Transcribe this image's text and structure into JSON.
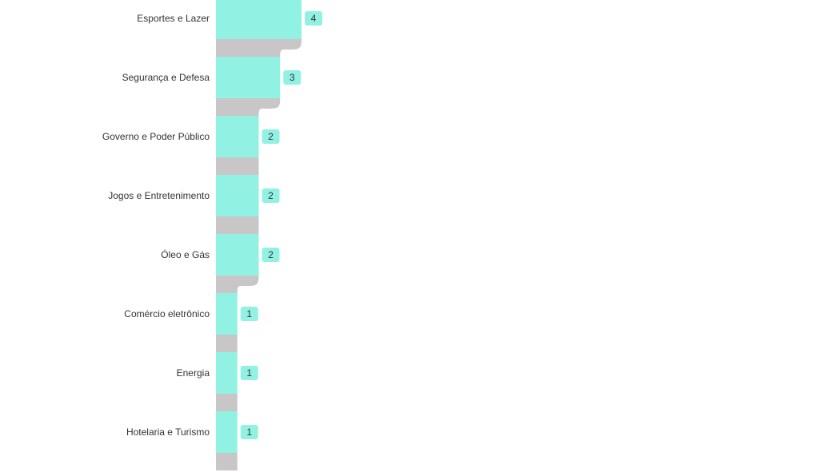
{
  "chart_data": {
    "type": "bar",
    "orientation": "horizontal",
    "style": "funnel",
    "categories": [
      "Esportes e Lazer",
      "Segurança e Defesa",
      "Governo e Poder Público",
      "Jogos e Entretenimento",
      "Óleo e Gás",
      "Comércio eletrônico",
      "Energia",
      "Hotelaria e Turismo"
    ],
    "values": [
      4,
      3,
      2,
      2,
      2,
      1,
      1,
      1
    ],
    "title": "",
    "xlabel": "",
    "ylabel": "",
    "xlim": [
      0,
      4
    ],
    "grid": false,
    "legend": "none"
  },
  "colors": {
    "bar": "#91f2e4",
    "connector": "#c8c6c6",
    "label_badge": "#91f2e4",
    "text": "#333333"
  }
}
